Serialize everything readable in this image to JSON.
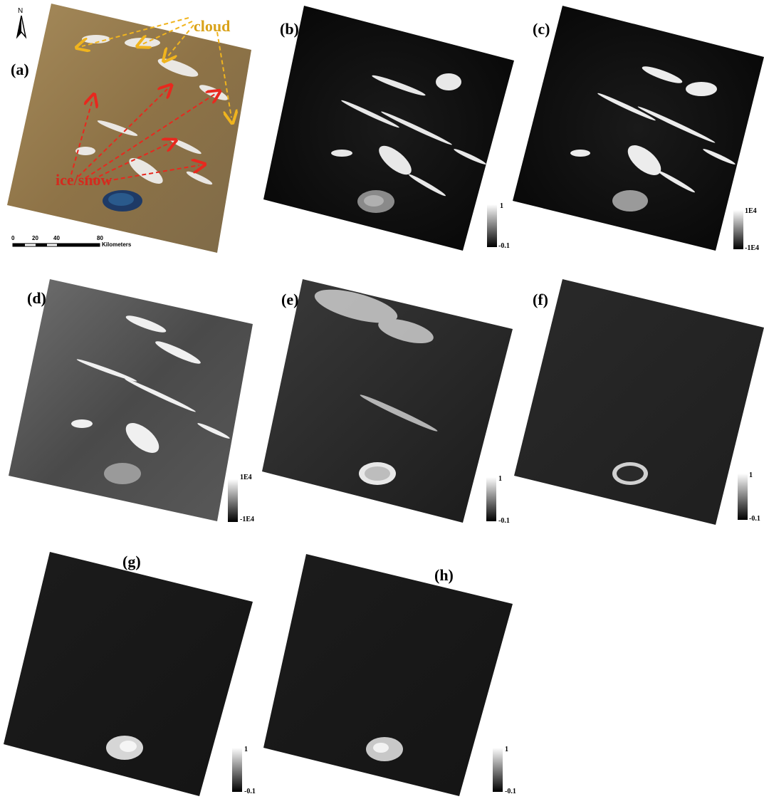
{
  "panels": {
    "a": {
      "label": "(a)"
    },
    "b": {
      "label": "(b)",
      "colorbar": {
        "max": "1",
        "min": "-0.1"
      }
    },
    "c": {
      "label": "(c)",
      "colorbar": {
        "max": "1E4",
        "min": "-1E4"
      }
    },
    "d": {
      "label": "(d)",
      "colorbar": {
        "max": "1E4",
        "min": "-1E4"
      }
    },
    "e": {
      "label": "(e)",
      "colorbar": {
        "max": "1",
        "min": "-0.1"
      }
    },
    "f": {
      "label": "(f)",
      "colorbar": {
        "max": "1",
        "min": "-0.1"
      }
    },
    "g": {
      "label": "(g)",
      "colorbar": {
        "max": "1",
        "min": "-0.1"
      }
    },
    "h": {
      "label": "(h)",
      "colorbar": {
        "max": "1",
        "min": "-0.1"
      }
    }
  },
  "annotations": {
    "cloud": "cloud",
    "ice_snow": "ice/snow"
  },
  "north_arrow": "N",
  "scale_bar": {
    "ticks": [
      "0",
      "20",
      "40",
      "80"
    ],
    "unit": "Kilometers"
  },
  "colors": {
    "cloud_arrow": "#f0b41e",
    "ice_arrow": "#e8281e",
    "cloud_text": "#d9a21a",
    "ice_text": "#d42a1e"
  }
}
